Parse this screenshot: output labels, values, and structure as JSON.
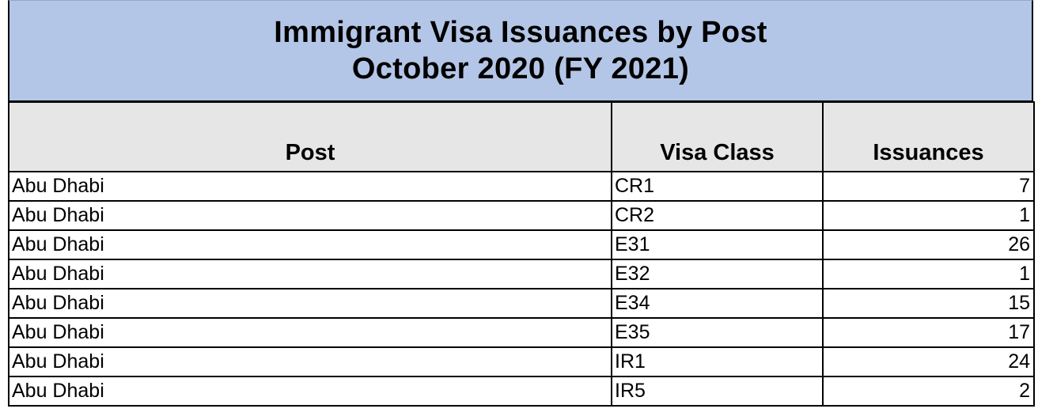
{
  "title": {
    "line1": "Immigrant Visa Issuances by Post",
    "line2": "October 2020 (FY 2021)"
  },
  "headers": {
    "post": "Post",
    "visa_class": "Visa Class",
    "issuances": "Issuances"
  },
  "rows": [
    {
      "post": "Abu Dhabi",
      "visa_class": "CR1",
      "issuances": "7"
    },
    {
      "post": "Abu Dhabi",
      "visa_class": "CR2",
      "issuances": "1"
    },
    {
      "post": "Abu Dhabi",
      "visa_class": "E31",
      "issuances": "26"
    },
    {
      "post": "Abu Dhabi",
      "visa_class": "E32",
      "issuances": "1"
    },
    {
      "post": "Abu Dhabi",
      "visa_class": "E34",
      "issuances": "15"
    },
    {
      "post": "Abu Dhabi",
      "visa_class": "E35",
      "issuances": "17"
    },
    {
      "post": "Abu Dhabi",
      "visa_class": "IR1",
      "issuances": "24"
    },
    {
      "post": "Abu Dhabi",
      "visa_class": "IR5",
      "issuances": "2"
    }
  ],
  "colors": {
    "title_background": "#b4c6e7",
    "header_background": "#e7e6e6",
    "border": "#000000"
  }
}
